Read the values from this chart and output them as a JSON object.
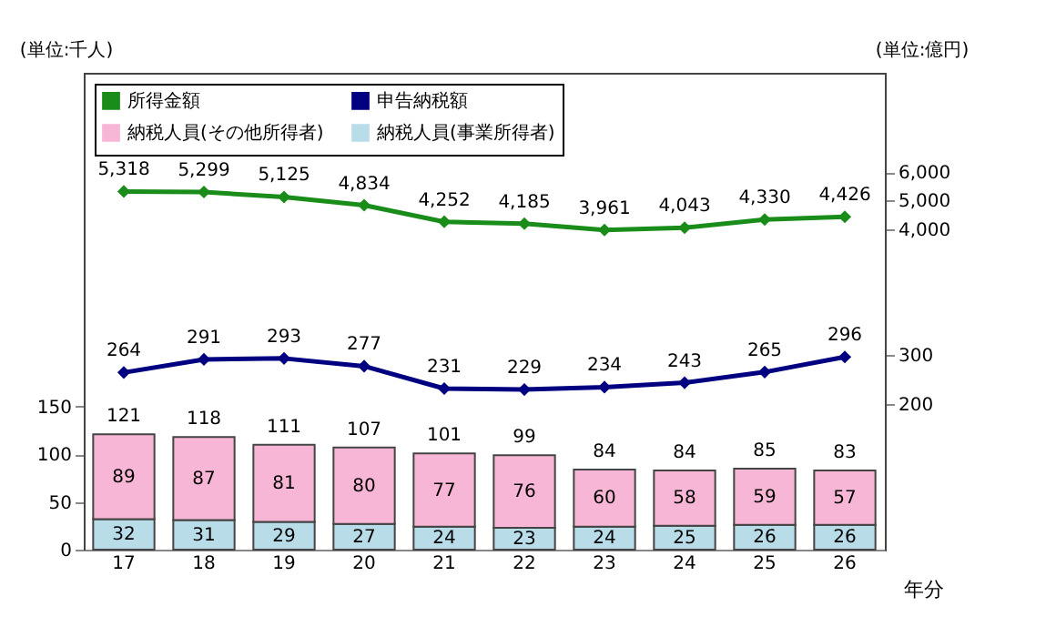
{
  "chart_data": {
    "type": "bar",
    "stacked": true,
    "xlabel": "年分",
    "ylabel": "(単位:千人)",
    "y2label": "(単位:億円)",
    "categories": [
      "17",
      "18",
      "19",
      "20",
      "21",
      "22",
      "23",
      "24",
      "25",
      "26"
    ],
    "series": [
      {
        "name": "納税人員(事業所得者)",
        "color": "#b8dde9",
        "values": [
          32,
          31,
          29,
          27,
          24,
          23,
          24,
          25,
          26,
          26
        ]
      },
      {
        "name": "納税人員(その他所得者)",
        "color": "#f8b6d6",
        "values": [
          89,
          87,
          81,
          80,
          77,
          76,
          60,
          58,
          59,
          57
        ]
      },
      {
        "name": "申告納税額",
        "type": "line",
        "axis": "y2",
        "color": "#000080",
        "values": [
          264,
          291,
          293,
          277,
          231,
          229,
          234,
          243,
          265,
          296
        ]
      },
      {
        "name": "所得金額",
        "type": "line",
        "axis": "y3",
        "color": "#1a8c1a",
        "values": [
          5318,
          5299,
          5125,
          4834,
          4252,
          4185,
          3961,
          4043,
          4330,
          4426
        ],
        "value_labels": [
          "5,318",
          "5,299",
          "5,125",
          "4,834",
          "4,252",
          "4,185",
          "3,961",
          "4,043",
          "4,330",
          "4,426"
        ]
      }
    ],
    "totals": [
      "121",
      "118",
      "111",
      "107",
      "101",
      "99",
      "84",
      "84",
      "85",
      "83"
    ],
    "ylim": [
      0,
      500
    ],
    "yticks": [
      0,
      50,
      100,
      150
    ],
    "y2lim": [
      -100,
      880
    ],
    "y2ticks": [
      200,
      300
    ],
    "y3lim": [
      -7300,
      9500
    ],
    "y3ticks": [
      {
        "value": 4000,
        "label": "4,000"
      },
      {
        "value": 5000,
        "label": "5,000"
      },
      {
        "value": 6000,
        "label": "6,000"
      }
    ],
    "data_labels": true,
    "marker": "diamond",
    "line_style": "solid",
    "grid": false,
    "legend": "top left"
  }
}
